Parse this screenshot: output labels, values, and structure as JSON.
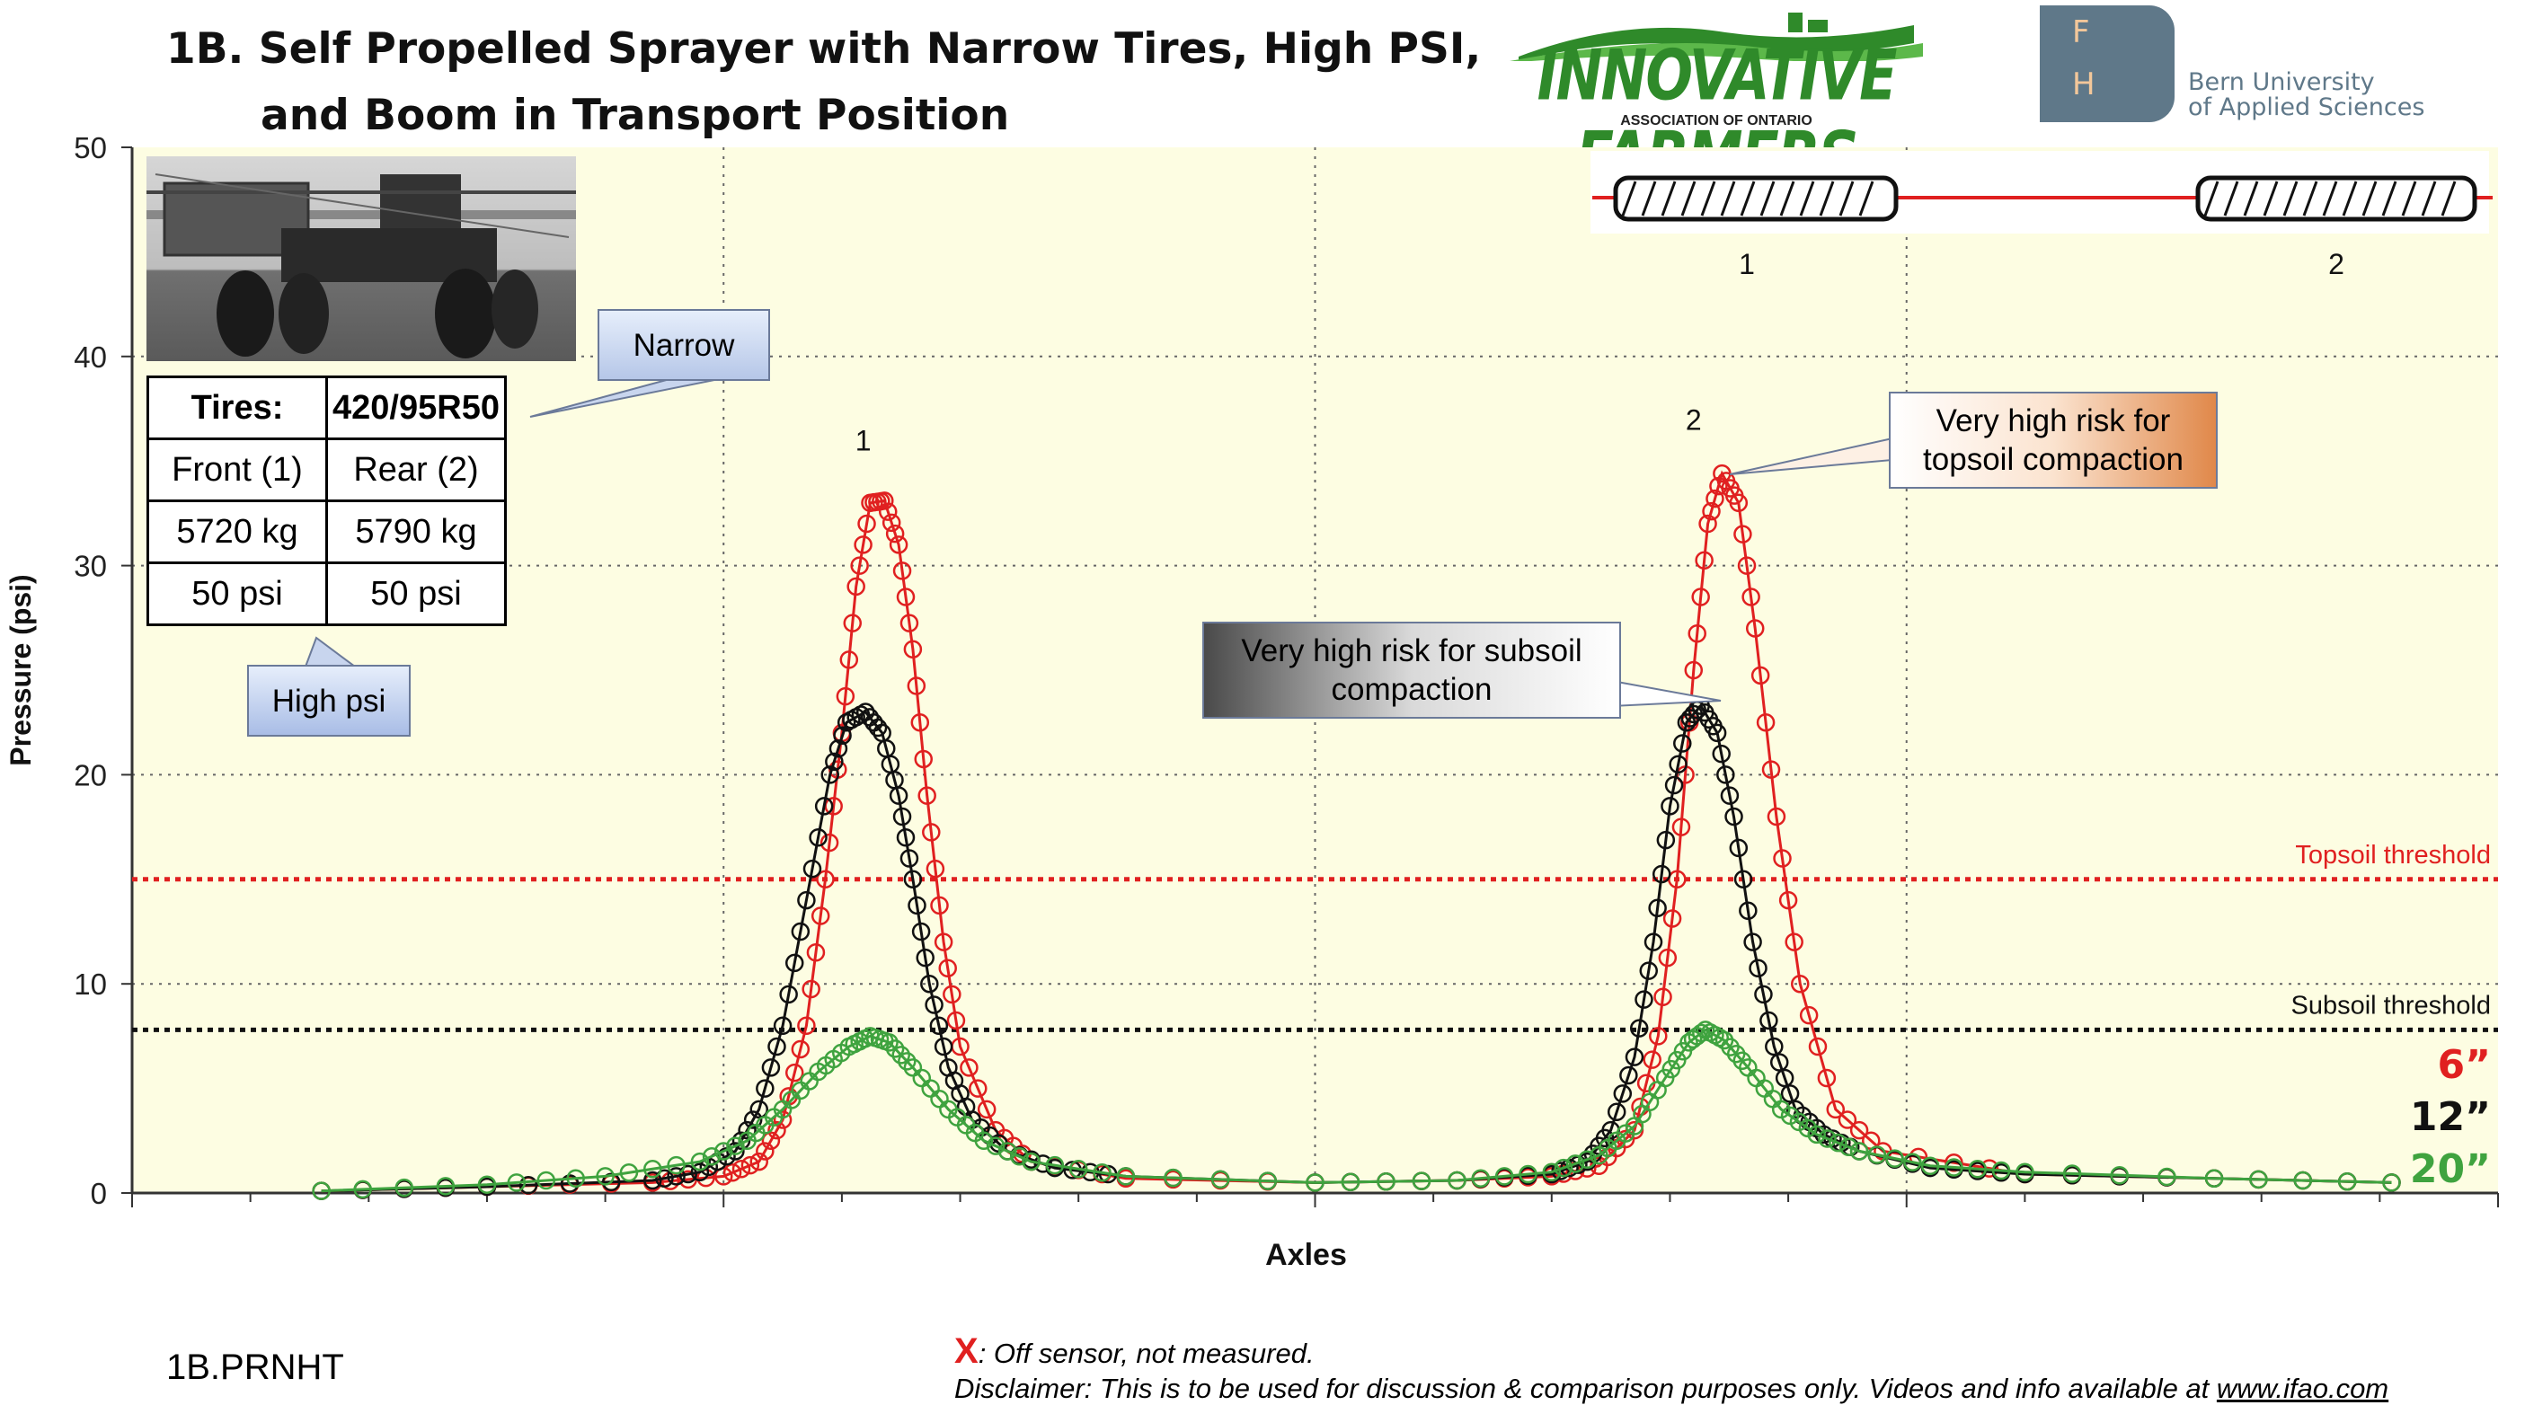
{
  "header": {
    "title_line1": "1B. Self Propelled Sprayer with Narrow  Tires, High PSI,",
    "title_line2": "and Boom in Transport Position"
  },
  "logos": {
    "ifa_name": "INNOVATIVE FARMERS",
    "ifa_sub": "ASSOCIATION OF ONTARIO",
    "bfh_letter_f": "F",
    "bfh_letter_h": "H",
    "bfh_line1": "Bern University",
    "bfh_line2": "of Applied Sciences"
  },
  "tire_table": {
    "header_label": "Tires:",
    "header_value": "420/95R50",
    "rows": [
      [
        "Front (1)",
        "Rear (2)"
      ],
      [
        "5720 kg",
        "5790 kg"
      ],
      [
        "50 psi",
        "50 psi"
      ]
    ]
  },
  "callouts": {
    "narrow": "Narrow",
    "high_psi": "High psi",
    "topsoil_line1": "Very high risk for",
    "topsoil_line2": "topsoil compaction",
    "subsoil_line1": "Very high risk for subsoil",
    "subsoil_line2": "compaction"
  },
  "axle_diagram": {
    "labels": [
      "1",
      "2"
    ]
  },
  "legend": {
    "d6": "6”",
    "d12": "12”",
    "d20": "20”",
    "colors": {
      "d6": "#e02020",
      "d12": "#111111",
      "d20": "#3fa33f"
    }
  },
  "footer": {
    "id": "1B.PRNHT",
    "note_x": "X",
    "note_text": ": Off sensor, not measured.",
    "disclaimer": "Disclaimer: This is to be used for discussion & comparison purposes only. Videos and info available at ",
    "url": "www.ifao.com"
  },
  "chart_data": {
    "type": "line",
    "xlabel": "Axles",
    "ylabel": "Pressure (psi)",
    "ylim": [
      0,
      50
    ],
    "yticks": [
      0,
      10,
      20,
      30,
      40,
      50
    ],
    "xlim": [
      0,
      100
    ],
    "grid": true,
    "background": "#fdfde2",
    "peak_labels": [
      {
        "label": "1",
        "x": 30.9,
        "y": 35.5
      },
      {
        "label": "2",
        "x": 66.0,
        "y": 36.5
      }
    ],
    "thresholds": [
      {
        "name": "Topsoil threshold",
        "y": 15.0,
        "color": "#e02020"
      },
      {
        "name": "Subsoil threshold",
        "y": 7.8,
        "color": "#111111"
      }
    ],
    "series": [
      {
        "name": "6”",
        "color": "#e02020",
        "x": [
          8,
          15,
          22,
          25,
          26.5,
          27.5,
          28.5,
          29.3,
          30,
          30.6,
          31.2,
          31.8,
          32.4,
          33,
          33.6,
          34.3,
          35,
          36.5,
          38,
          42,
          50,
          56,
          60,
          62,
          63.5,
          64.5,
          65.3,
          66,
          66.6,
          67.2,
          67.9,
          68.6,
          69.5,
          70.5,
          72,
          74,
          80,
          88,
          95.5
        ],
        "y": [
          0.1,
          0.3,
          0.5,
          0.8,
          1.5,
          3.5,
          8,
          15,
          22,
          29,
          33,
          33.1,
          31,
          26,
          19,
          12,
          7,
          3,
          1.5,
          0.7,
          0.5,
          0.6,
          0.8,
          1.3,
          3,
          7.5,
          15,
          25,
          32,
          34.4,
          33,
          27,
          18,
          10,
          4,
          2,
          0.9,
          0.7,
          0.5
        ]
      },
      {
        "name": "12”",
        "color": "#111111",
        "x": [
          8,
          15,
          22,
          24,
          25.5,
          26.5,
          27.5,
          28.5,
          29.5,
          30.2,
          31,
          31.7,
          32.4,
          33,
          33.7,
          34.5,
          35.5,
          37,
          39,
          42,
          50,
          56,
          60,
          61.5,
          62.5,
          63.5,
          64.3,
          65,
          65.7,
          66.3,
          67,
          67.7,
          68.5,
          69.4,
          70.3,
          71.5,
          73,
          76,
          80,
          88,
          95.5
        ],
        "y": [
          0.1,
          0.3,
          0.6,
          1.0,
          2.0,
          4.0,
          8.0,
          14.0,
          20.0,
          22.5,
          23.0,
          22.0,
          19.0,
          15.0,
          10.0,
          6.0,
          3.5,
          2.0,
          1.2,
          0.8,
          0.5,
          0.6,
          0.9,
          1.5,
          3.0,
          6.5,
          12.0,
          18.5,
          22.5,
          23.3,
          22.0,
          18.0,
          12.0,
          7.0,
          4.0,
          2.8,
          2.0,
          1.2,
          0.9,
          0.7,
          0.5
        ]
      },
      {
        "name": "20”",
        "color": "#3fa33f",
        "x": [
          8,
          15,
          20,
          24,
          26,
          27.5,
          29,
          30.3,
          31.2,
          32,
          33,
          34.5,
          36,
          38,
          42,
          50,
          56,
          60,
          62,
          63.5,
          64.8,
          65.8,
          66.5,
          67.3,
          68.3,
          69.7,
          71.2,
          73,
          76,
          80,
          88,
          95.5
        ],
        "y": [
          0.1,
          0.4,
          0.8,
          1.5,
          2.5,
          4.0,
          5.8,
          7.0,
          7.5,
          7.2,
          6.0,
          4.0,
          2.5,
          1.5,
          0.8,
          0.5,
          0.6,
          1.0,
          1.8,
          3.2,
          5.5,
          7.2,
          7.8,
          7.3,
          6.0,
          4.0,
          2.8,
          2.0,
          1.3,
          1.0,
          0.7,
          0.5
        ]
      }
    ]
  }
}
